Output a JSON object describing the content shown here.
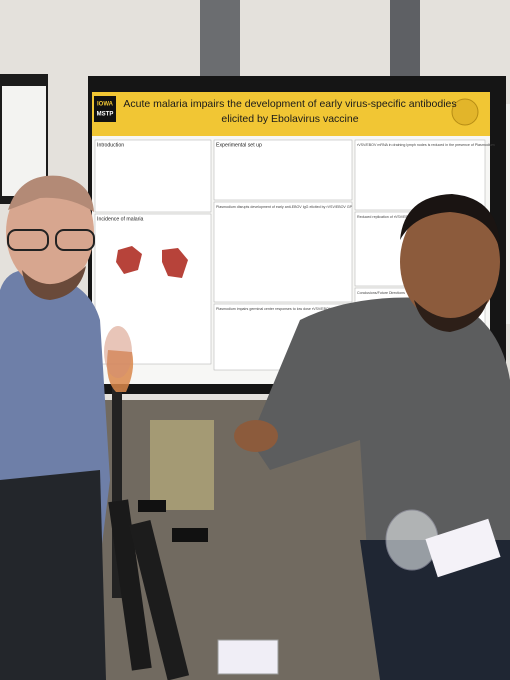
{
  "poster": {
    "logo": {
      "line1": "IOWA",
      "line2": "MSTP"
    },
    "title_line1": "Acute malaria impairs the development of early virus-specific antibodies",
    "title_line2": "elicited by Ebolavirus vaccine",
    "sections": {
      "introduction": "Introduction",
      "setup": "Experimental set up",
      "lymph": "rVSV/EBOV mRNA in draining lymph nodes is reduced in the presence of Plasmodium",
      "igg": "Plasmodium disrupts development of early anti-EBOV IgG elicited by rVSV/EBOV GP",
      "incidence": "Incidence of malaria",
      "replication": "Reduced replication of rVSV/EBOV",
      "germinal": "Plasmodium impairs germinal center responses to low dose rVSV/EBOV",
      "conclusions": "Conclusions/Future Directions"
    }
  }
}
